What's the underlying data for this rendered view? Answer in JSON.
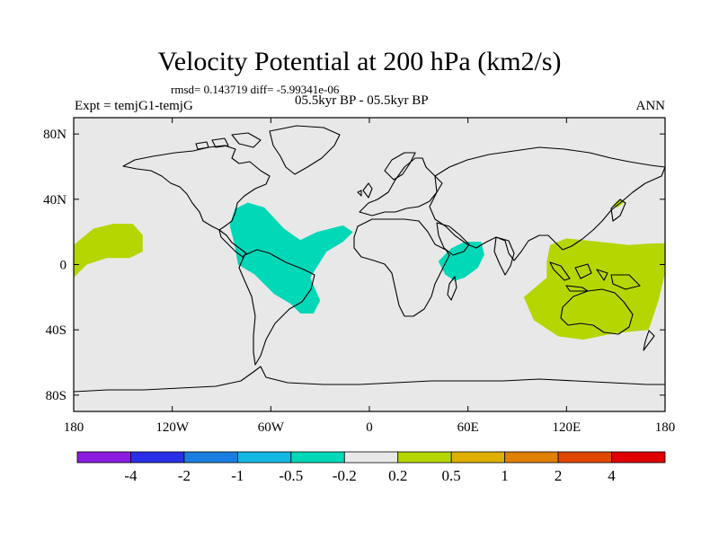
{
  "chart_data": {
    "type": "map",
    "title": "Velocity Potential at 200 hPa (km2/s)",
    "stats": "rmsd= 0.143719 diff= -5.99341e-06",
    "period": "05.5kyr BP - 05.5kyr BP",
    "experiment": "Expt = temjG1-temjG",
    "season": "ANN",
    "lon_range": [
      -180,
      180
    ],
    "lat_range": [
      -90,
      90
    ],
    "x_ticks": [
      {
        "value": -180,
        "label": "180"
      },
      {
        "value": -120,
        "label": "120W"
      },
      {
        "value": -60,
        "label": "60W"
      },
      {
        "value": 0,
        "label": "0"
      },
      {
        "value": 60,
        "label": "60E"
      },
      {
        "value": 120,
        "label": "120E"
      },
      {
        "value": 180,
        "label": "180"
      }
    ],
    "y_ticks": [
      {
        "value": 80,
        "label": "80N"
      },
      {
        "value": 40,
        "label": "40N"
      },
      {
        "value": 0,
        "label": "0"
      },
      {
        "value": -40,
        "label": "40S"
      },
      {
        "value": -80,
        "label": "80S"
      }
    ],
    "anomaly_regions": [
      {
        "name": "tropical-americas-atlantic",
        "level": "-0.5 to -0.2",
        "color": "#00d8b8",
        "outline": [
          [
            -82,
            34
          ],
          [
            -74,
            38
          ],
          [
            -64,
            35
          ],
          [
            -52,
            22
          ],
          [
            -42,
            15
          ],
          [
            -32,
            20
          ],
          [
            -16,
            24
          ],
          [
            -10,
            20
          ],
          [
            -16,
            14
          ],
          [
            -26,
            8
          ],
          [
            -36,
            -8
          ],
          [
            -30,
            -22
          ],
          [
            -34,
            -30
          ],
          [
            -42,
            -30
          ],
          [
            -48,
            -24
          ],
          [
            -58,
            -18
          ],
          [
            -70,
            -6
          ],
          [
            -80,
            0
          ],
          [
            -82,
            12
          ],
          [
            -85,
            24
          ]
        ]
      },
      {
        "name": "west-indian-ocean",
        "level": "-0.5 to -0.2",
        "color": "#00d8b8",
        "outline": [
          [
            42,
            2
          ],
          [
            50,
            10
          ],
          [
            58,
            14
          ],
          [
            68,
            14
          ],
          [
            70,
            6
          ],
          [
            66,
            -2
          ],
          [
            58,
            -8
          ],
          [
            52,
            -10
          ],
          [
            46,
            -6
          ]
        ]
      },
      {
        "name": "central-pacific",
        "level": "0.2 to 0.5",
        "color": "#b5d600",
        "outline": [
          [
            -180,
            12
          ],
          [
            -168,
            22
          ],
          [
            -156,
            25
          ],
          [
            -144,
            25
          ],
          [
            -138,
            18
          ],
          [
            -138,
            8
          ],
          [
            -146,
            4
          ],
          [
            -160,
            4
          ],
          [
            -172,
            0
          ],
          [
            -180,
            -8
          ]
        ]
      },
      {
        "name": "maritime-continent-australia",
        "level": "0.2 to 0.5",
        "color": "#b5d600",
        "outline": [
          [
            110,
            12
          ],
          [
            120,
            16
          ],
          [
            140,
            14
          ],
          [
            158,
            12
          ],
          [
            172,
            13
          ],
          [
            180,
            13
          ],
          [
            180,
            -5
          ],
          [
            176,
            -22
          ],
          [
            170,
            -40
          ],
          [
            150,
            -42
          ],
          [
            130,
            -46
          ],
          [
            115,
            -44
          ],
          [
            100,
            -34
          ],
          [
            94,
            -20
          ],
          [
            108,
            -8
          ],
          [
            108,
            2
          ]
        ]
      },
      {
        "name": "north-west-pacific",
        "level": "0.2 to 0.5",
        "color": "#b5d600",
        "outline": [
          [
            148,
            36
          ],
          [
            152,
            40
          ],
          [
            155,
            38
          ],
          [
            151,
            35
          ]
        ]
      }
    ],
    "colorbar": {
      "labels": [
        "-4",
        "-2",
        "-1",
        "-0.5",
        "-0.2",
        "0.2",
        "0.5",
        "1",
        "2",
        "4"
      ],
      "colors": [
        "#8a1ce0",
        "#2a2ee6",
        "#1a7ee0",
        "#14b8e4",
        "#00d8b8",
        "#e8e8e8",
        "#b5d600",
        "#e0b000",
        "#e08000",
        "#e04800",
        "#e00000"
      ]
    }
  }
}
